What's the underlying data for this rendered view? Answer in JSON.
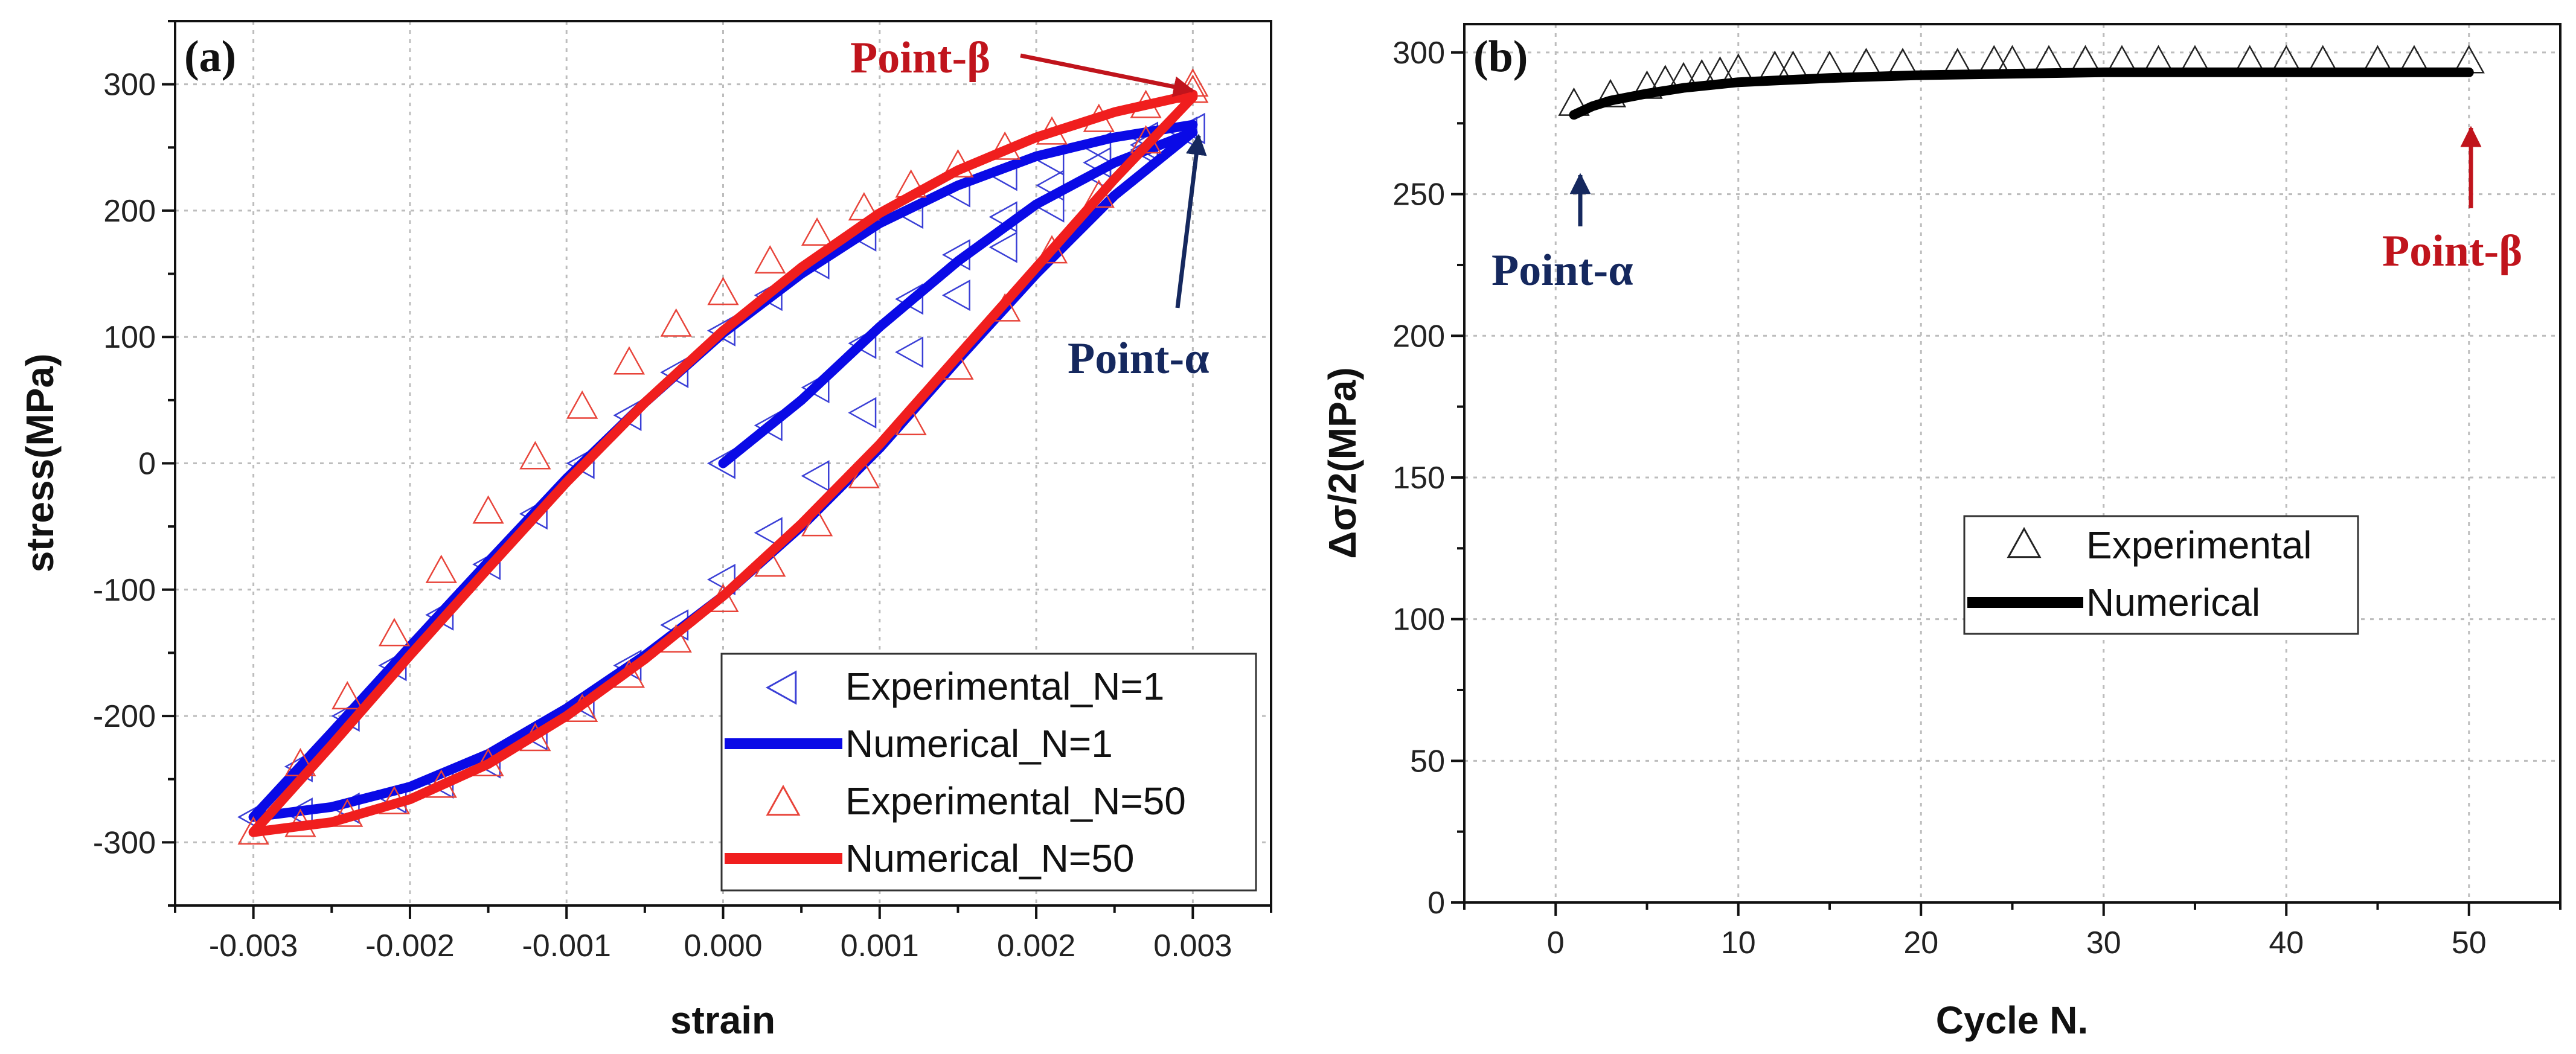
{
  "colors": {
    "exp_n1": "#3a3fd6",
    "num_n1": "#0a0ae6",
    "exp_n50": "#e8443a",
    "num_n50": "#f01e1e",
    "exp_b": "#222222",
    "num_b": "#000000",
    "beta": "#c0141c",
    "alpha": "#15285e",
    "grid": "#bdbdbd"
  },
  "chart_data": [
    {
      "type": "scatter",
      "panel_label": "(a)",
      "xlabel": "strain",
      "ylabel": "stress(MPa)",
      "xlim": [
        -0.0035,
        0.0035
      ],
      "ylim": [
        -350,
        350
      ],
      "x_ticks": [
        -0.003,
        -0.002,
        -0.001,
        0.0,
        0.001,
        0.002,
        0.003
      ],
      "x_tick_labels": [
        "-0.003",
        "-0.002",
        "-0.001",
        "0.000",
        "0.001",
        "0.002",
        "0.003"
      ],
      "y_ticks": [
        -300,
        -200,
        -100,
        0,
        100,
        200,
        300
      ],
      "y_tick_labels": [
        "-300",
        "-200",
        "-100",
        "0",
        "100",
        "200",
        "300"
      ],
      "grid": true,
      "legend_position": "bottom-right",
      "series": [
        {
          "name": "Experimental_N=1",
          "kind": "markers",
          "marker": "left-triangle",
          "color": "#3a3fd6",
          "points": [
            [
              0.0,
              0
            ],
            [
              0.0003,
              30
            ],
            [
              0.0006,
              60
            ],
            [
              0.0009,
              95
            ],
            [
              0.0012,
              130
            ],
            [
              0.0015,
              165
            ],
            [
              0.0018,
              195
            ],
            [
              0.0021,
              220
            ],
            [
              0.0024,
              238
            ],
            [
              0.0027,
              252
            ],
            [
              0.00295,
              262
            ],
            [
              0.0027,
              248
            ],
            [
              0.0024,
              228
            ],
            [
              0.0021,
              203
            ],
            [
              0.0018,
              171
            ],
            [
              0.0015,
              133
            ],
            [
              0.0012,
              88
            ],
            [
              0.0009,
              40
            ],
            [
              0.0006,
              -10
            ],
            [
              0.0003,
              -55
            ],
            [
              0.0,
              -92
            ],
            [
              -0.0003,
              -128
            ],
            [
              -0.0006,
              -160
            ],
            [
              -0.0009,
              -190
            ],
            [
              -0.0012,
              -215
            ],
            [
              -0.0015,
              -237
            ],
            [
              -0.0018,
              -253
            ],
            [
              -0.0021,
              -265
            ],
            [
              -0.0024,
              -273
            ],
            [
              -0.0027,
              -277
            ],
            [
              -0.003,
              -280
            ],
            [
              -0.0027,
              -240
            ],
            [
              -0.0024,
              -200
            ],
            [
              -0.0021,
              -160
            ],
            [
              -0.0018,
              -120
            ],
            [
              -0.0015,
              -80
            ],
            [
              -0.0012,
              -40
            ],
            [
              -0.0009,
              0
            ],
            [
              -0.0006,
              38
            ],
            [
              -0.0003,
              72
            ],
            [
              0.0,
              105
            ],
            [
              0.0003,
              133
            ],
            [
              0.0006,
              158
            ],
            [
              0.0009,
              180
            ],
            [
              0.0012,
              198
            ],
            [
              0.0015,
              215
            ],
            [
              0.0018,
              228
            ],
            [
              0.0021,
              240
            ],
            [
              0.0024,
              250
            ],
            [
              0.0027,
              258
            ],
            [
              0.003,
              265
            ]
          ]
        },
        {
          "name": "Numerical_N=1",
          "kind": "line",
          "color": "#0a0ae6",
          "points": [
            [
              0.0,
              0
            ],
            [
              0.0005,
              50
            ],
            [
              0.001,
              108
            ],
            [
              0.0015,
              160
            ],
            [
              0.002,
              205
            ],
            [
              0.0025,
              238
            ],
            [
              0.003,
              262
            ],
            [
              0.0025,
              212
            ],
            [
              0.002,
              150
            ],
            [
              0.0015,
              82
            ],
            [
              0.001,
              12
            ],
            [
              0.0005,
              -50
            ],
            [
              0.0,
              -105
            ],
            [
              -0.0005,
              -152
            ],
            [
              -0.001,
              -194
            ],
            [
              -0.0015,
              -230
            ],
            [
              -0.002,
              -256
            ],
            [
              -0.0025,
              -272
            ],
            [
              -0.003,
              -280
            ],
            [
              -0.0025,
              -213
            ],
            [
              -0.002,
              -145
            ],
            [
              -0.0015,
              -78
            ],
            [
              -0.001,
              -12
            ],
            [
              -0.0005,
              48
            ],
            [
              0.0,
              103
            ],
            [
              0.0005,
              150
            ],
            [
              0.001,
              190
            ],
            [
              0.0015,
              220
            ],
            [
              0.002,
              243
            ],
            [
              0.0025,
              258
            ],
            [
              0.003,
              268
            ]
          ]
        },
        {
          "name": "Experimental_N=50",
          "kind": "markers",
          "marker": "up-triangle",
          "color": "#e8443a",
          "points": [
            [
              0.003,
              295
            ],
            [
              0.0027,
              255
            ],
            [
              0.0024,
              212
            ],
            [
              0.0021,
              168
            ],
            [
              0.0018,
              122
            ],
            [
              0.0015,
              76
            ],
            [
              0.0012,
              32
            ],
            [
              0.0009,
              -10
            ],
            [
              0.0006,
              -48
            ],
            [
              0.0003,
              -80
            ],
            [
              0.0,
              -108
            ],
            [
              -0.0003,
              -140
            ],
            [
              -0.0006,
              -168
            ],
            [
              -0.0009,
              -195
            ],
            [
              -0.0012,
              -218
            ],
            [
              -0.0015,
              -238
            ],
            [
              -0.0018,
              -255
            ],
            [
              -0.0021,
              -268
            ],
            [
              -0.0024,
              -278
            ],
            [
              -0.0027,
              -286
            ],
            [
              -0.003,
              -292
            ],
            [
              -0.0027,
              -238
            ],
            [
              -0.0024,
              -185
            ],
            [
              -0.0021,
              -135
            ],
            [
              -0.0018,
              -85
            ],
            [
              -0.0015,
              -38
            ],
            [
              -0.0012,
              5
            ],
            [
              -0.0009,
              45
            ],
            [
              -0.0006,
              80
            ],
            [
              -0.0003,
              110
            ],
            [
              0.0,
              135
            ],
            [
              0.0003,
              160
            ],
            [
              0.0006,
              182
            ],
            [
              0.0009,
              202
            ],
            [
              0.0012,
              220
            ],
            [
              0.0015,
              236
            ],
            [
              0.0018,
              250
            ],
            [
              0.0021,
              262
            ],
            [
              0.0024,
              272
            ],
            [
              0.0027,
              283
            ],
            [
              0.003,
              300
            ]
          ]
        },
        {
          "name": "Numerical_N=50",
          "kind": "line",
          "color": "#f01e1e",
          "points": [
            [
              0.003,
              290
            ],
            [
              0.0025,
              225
            ],
            [
              0.002,
              155
            ],
            [
              0.0015,
              85
            ],
            [
              0.001,
              15
            ],
            [
              0.0005,
              -48
            ],
            [
              0.0,
              -105
            ],
            [
              -0.0005,
              -155
            ],
            [
              -0.001,
              -200
            ],
            [
              -0.0015,
              -238
            ],
            [
              -0.002,
              -266
            ],
            [
              -0.0025,
              -284
            ],
            [
              -0.003,
              -292
            ],
            [
              -0.0025,
              -223
            ],
            [
              -0.002,
              -152
            ],
            [
              -0.0015,
              -83
            ],
            [
              -0.001,
              -15
            ],
            [
              -0.0005,
              48
            ],
            [
              0.0,
              105
            ],
            [
              0.0005,
              155
            ],
            [
              0.001,
              198
            ],
            [
              0.0015,
              232
            ],
            [
              0.002,
              258
            ],
            [
              0.0025,
              278
            ],
            [
              0.003,
              292
            ]
          ]
        }
      ],
      "annotations": [
        {
          "text": "Point-β",
          "color": "#c0141c",
          "target": [
            0.003,
            292
          ]
        },
        {
          "text": "Point-α",
          "color": "#15285e",
          "target": [
            0.003,
            262
          ]
        }
      ]
    },
    {
      "type": "scatter",
      "panel_label": "(b)",
      "xlabel": "Cycle N.",
      "ylabel": "Δσ/2(MPa)",
      "xlim": [
        -5,
        55
      ],
      "ylim": [
        0,
        310
      ],
      "x_ticks": [
        0,
        10,
        20,
        30,
        40,
        50
      ],
      "x_tick_labels": [
        "0",
        "10",
        "20",
        "30",
        "40",
        "50"
      ],
      "y_ticks": [
        0,
        50,
        100,
        150,
        200,
        250,
        300
      ],
      "y_tick_labels": [
        "0",
        "50",
        "100",
        "150",
        "200",
        "250",
        "300"
      ],
      "grid": true,
      "legend_position": "center-right",
      "series": [
        {
          "name": "Experimental",
          "kind": "markers",
          "marker": "up-triangle",
          "color": "#222222",
          "x": [
            1,
            3,
            5,
            6,
            7,
            8,
            9,
            10,
            12,
            13,
            15,
            17,
            19,
            22,
            24,
            25,
            27,
            29,
            31,
            33,
            35,
            38,
            40,
            42,
            45,
            47,
            50
          ],
          "values": [
            282,
            285,
            288,
            290,
            291,
            292,
            293,
            294,
            295,
            295,
            295,
            296,
            296,
            296,
            297,
            297,
            297,
            297,
            297,
            297,
            297,
            297,
            297,
            297,
            297,
            297,
            297
          ]
        },
        {
          "name": "Numerical",
          "kind": "line",
          "color": "#000000",
          "x": [
            1,
            2,
            3,
            5,
            7,
            10,
            15,
            20,
            25,
            30,
            35,
            40,
            45,
            50
          ],
          "values": [
            278,
            281,
            283,
            285.5,
            287.5,
            289.5,
            291,
            292,
            292.5,
            293,
            293,
            293,
            293,
            293
          ]
        }
      ],
      "annotations": [
        {
          "text": "Point-α",
          "color": "#15285e",
          "target": [
            1,
            278
          ]
        },
        {
          "text": "Point-β",
          "color": "#c0141c",
          "target": [
            50,
            293
          ]
        }
      ]
    }
  ]
}
